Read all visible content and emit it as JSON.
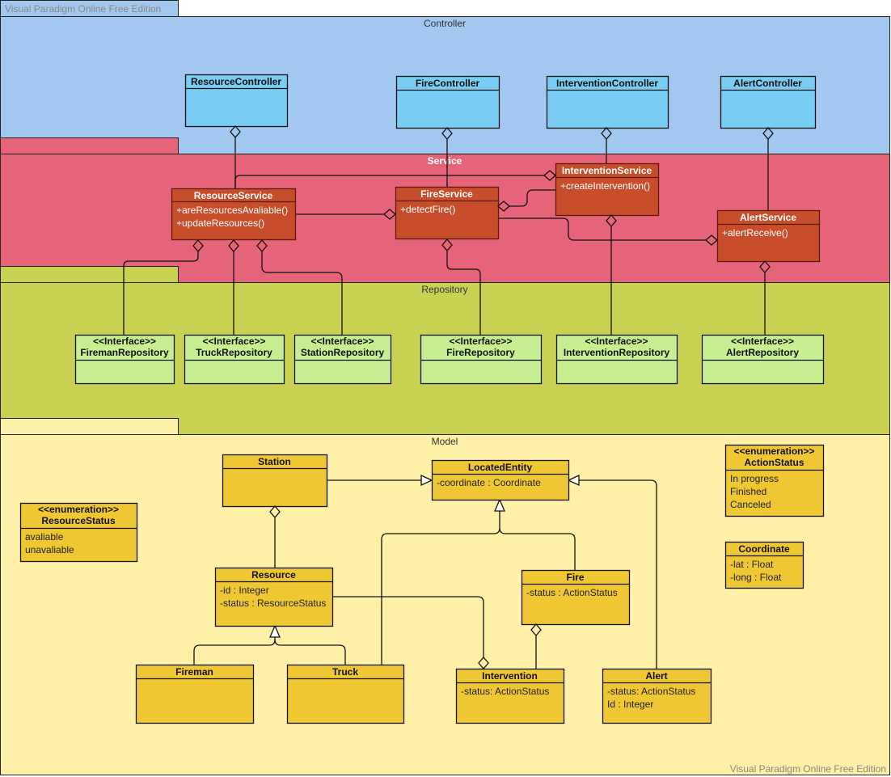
{
  "watermark": "Visual Paradigm Online Free Edition",
  "colors": {
    "controller_pkg": "#a3c8f0",
    "service_pkg": "#e5647a",
    "repository_pkg": "#c9d152",
    "model_pkg": "#fff0a8",
    "controller_class": "#79cdf2",
    "service_class": "#c84e2b",
    "repository_class": "#c8ee92",
    "model_class": "#efc732"
  },
  "packages": {
    "controller": "Controller",
    "service": "Service",
    "repository": "Repository",
    "model": "Model"
  },
  "classes": {
    "resource_controller": {
      "name": "ResourceController",
      "members": []
    },
    "fire_controller": {
      "name": "FireController",
      "members": []
    },
    "intervention_controller": {
      "name": "InterventionController",
      "members": []
    },
    "alert_controller": {
      "name": "AlertController",
      "members": []
    },
    "resource_service": {
      "name": "ResourceService",
      "members": [
        "+areResourcesAvaliable()",
        "+updateResources()"
      ]
    },
    "fire_service": {
      "name": "FireService",
      "members": [
        "+detectFire()"
      ]
    },
    "intervention_service": {
      "name": "InterventionService",
      "members": [
        "+createIntervention()"
      ]
    },
    "alert_service": {
      "name": "AlertService",
      "members": [
        "+alertReceive()"
      ]
    },
    "fireman_repository": {
      "stereotype": "<<Interface>>",
      "name": "FiremanRepository",
      "members": []
    },
    "truck_repository": {
      "stereotype": "<<Interface>>",
      "name": "TruckRepository",
      "members": []
    },
    "station_repository": {
      "stereotype": "<<Interface>>",
      "name": "StationRepository",
      "members": []
    },
    "fire_repository": {
      "stereotype": "<<Interface>>",
      "name": "FireRepository",
      "members": []
    },
    "intervention_repository": {
      "stereotype": "<<Interface>>",
      "name": "InterventionRepository",
      "members": []
    },
    "alert_repository": {
      "stereotype": "<<Interface>>",
      "name": "AlertRepository",
      "members": []
    },
    "station": {
      "name": "Station",
      "members": []
    },
    "located_entity": {
      "name": "LocatedEntity",
      "members": [
        "-coordinate : Coordinate"
      ]
    },
    "resource_status": {
      "stereotype": "<<enumeration>>",
      "name": "ResourceStatus",
      "members": [
        "avaliable",
        "unavaliable"
      ]
    },
    "resource": {
      "name": "Resource",
      "members": [
        "-id : Integer",
        "-status : ResourceStatus"
      ]
    },
    "fire": {
      "name": "Fire",
      "members": [
        "-status : ActionStatus"
      ]
    },
    "action_status": {
      "stereotype": "<<enumeration>>",
      "name": "ActionStatus",
      "members": [
        "In progress",
        "Finished",
        "Canceled"
      ]
    },
    "coordinate": {
      "name": "Coordinate",
      "members": [
        "-lat : Float",
        "-long : Float"
      ]
    },
    "fireman": {
      "name": "Fireman",
      "members": []
    },
    "truck": {
      "name": "Truck",
      "members": []
    },
    "intervention": {
      "name": "Intervention",
      "members": [
        "-status: ActionStatus"
      ]
    },
    "alert": {
      "name": "Alert",
      "members": [
        "-status: ActionStatus",
        "Id : Integer"
      ]
    }
  }
}
